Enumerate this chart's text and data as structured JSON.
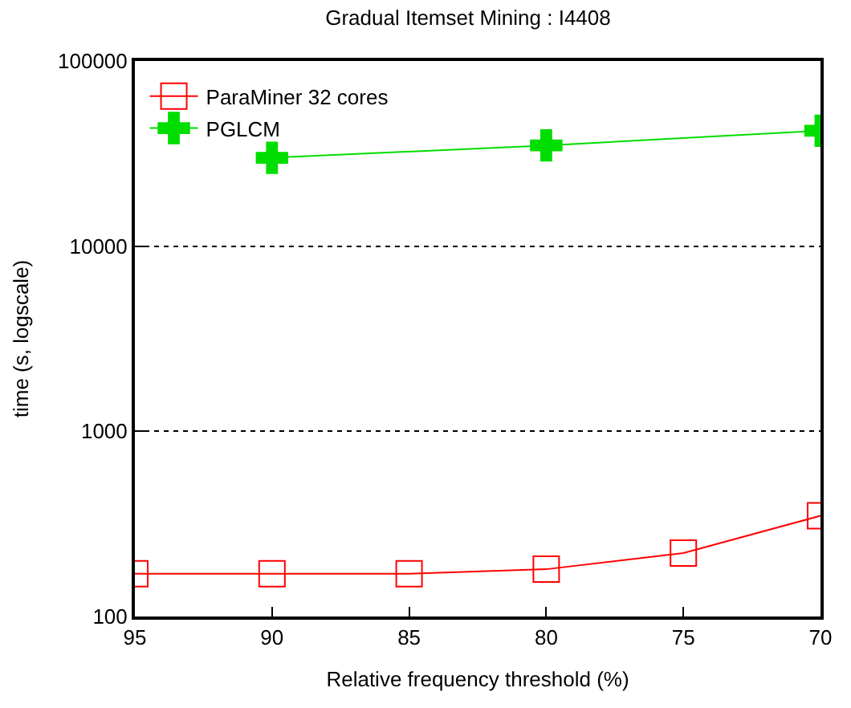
{
  "chart_data": {
    "type": "line",
    "title": "Gradual Itemset Mining : I4408",
    "xlabel": "Relative frequency threshold (%)",
    "ylabel": "time (s, logscale)",
    "x": [
      95,
      90,
      85,
      80,
      75,
      70
    ],
    "series": [
      {
        "name": "ParaMiner 32 cores",
        "color": "#ff0000",
        "marker": "square",
        "values": [
          170,
          170,
          170,
          180,
          220,
          350
        ]
      },
      {
        "name": "PGLCM",
        "color": "#00dd00",
        "marker": "cross",
        "x": [
          90,
          80,
          70
        ],
        "values": [
          30000,
          35000,
          42000
        ]
      }
    ],
    "xlim": [
      95,
      70
    ],
    "xticks": [
      95,
      90,
      85,
      80,
      75,
      70
    ],
    "ylim": [
      100,
      100000
    ],
    "yticks": [
      100,
      1000,
      10000,
      100000
    ],
    "log": "y",
    "grid": "y",
    "legend": "top left"
  }
}
